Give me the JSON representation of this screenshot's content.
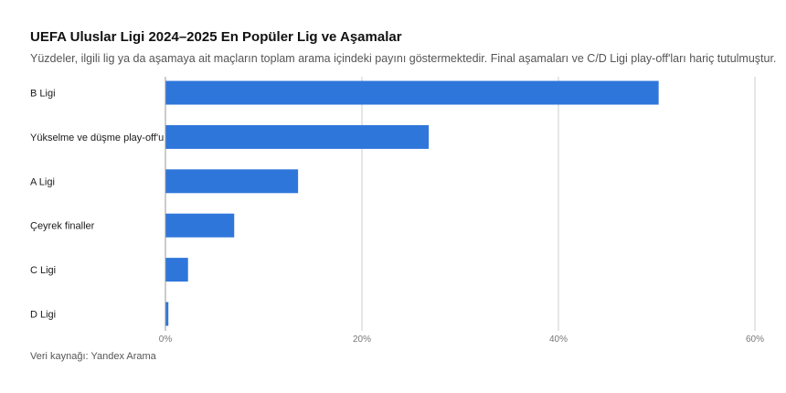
{
  "chart_data": {
    "type": "bar",
    "orientation": "horizontal",
    "title": "UEFA Uluslar Ligi 2024–2025 En Popüler Lig ve Aşamalar",
    "subtitle": "Yüzdeler, ilgili lig ya da aşamaya ait maçların toplam arama içindeki payını göstermektedir. Final aşamaları ve C/D Ligi play-off'ları hariç tutulmuştur.",
    "source": "Veri kaynağı: Yandex Arama",
    "categories": [
      "B Ligi",
      "Yükselme ve düşme play-off'u",
      "A Ligi",
      "Çeyrek finaller",
      "C Ligi",
      "D Ligi"
    ],
    "values": [
      50.2,
      26.8,
      13.5,
      7.0,
      2.3,
      0.3
    ],
    "xlim": [
      0,
      60
    ],
    "xticks": [
      0,
      20,
      40,
      60
    ],
    "xtick_labels": [
      "0%",
      "20%",
      "40%",
      "60%"
    ],
    "grid": true,
    "colors": {
      "bar": "#2f76db",
      "grid": "#cccccc",
      "axis": "#999999",
      "tick_label": "#777777",
      "category_label": "#1a1a1a"
    }
  }
}
